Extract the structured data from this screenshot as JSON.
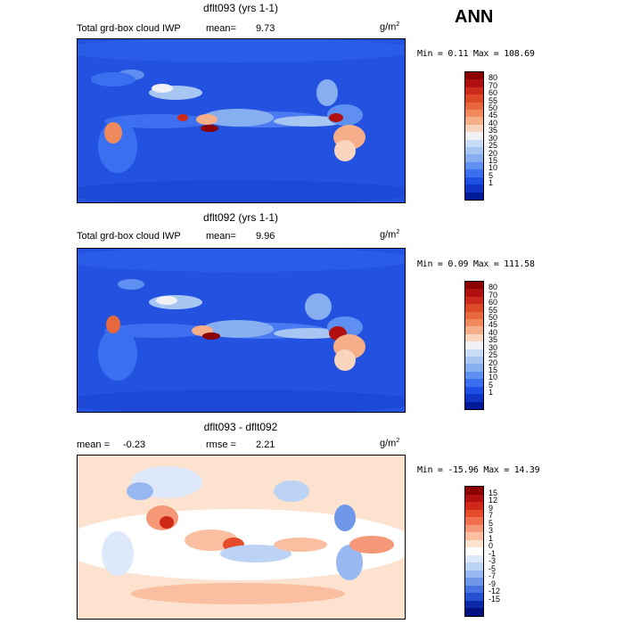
{
  "season": "ANN",
  "panels": [
    {
      "title": "dflt093 (yrs 1-1)",
      "field_label": "Total grd-box cloud IWP",
      "mean_label": "mean=",
      "mean_value": "9.73",
      "units": "g/m",
      "units_exp": "2",
      "range_text": "Min =    0.11 Max = 108.69",
      "colorbar_labels": [
        "80",
        "70",
        "60",
        "55",
        "50",
        "45",
        "40",
        "35",
        "30",
        "25",
        "20",
        "15",
        "10",
        "5",
        "1"
      ],
      "colorbar_colors": [
        "#8b0000",
        "#b01010",
        "#cc2a1a",
        "#dd4a2a",
        "#e8683e",
        "#f08a5c",
        "#f5ae88",
        "#fad5bd",
        "#f0f0f5",
        "#c9dcf5",
        "#a8c6f2",
        "#86aef0",
        "#5f8ff0",
        "#3a6ff0",
        "#1e50e6",
        "#1034c4",
        "#001a99"
      ]
    },
    {
      "title": "dflt092 (yrs 1-1)",
      "field_label": "Total grd-box cloud IWP",
      "mean_label": "mean=",
      "mean_value": "9.96",
      "units": "g/m",
      "units_exp": "2",
      "range_text": "Min =    0.09 Max = 111.58",
      "colorbar_labels": [
        "80",
        "70",
        "60",
        "55",
        "50",
        "45",
        "40",
        "35",
        "30",
        "25",
        "20",
        "15",
        "10",
        "5",
        "1"
      ],
      "colorbar_colors": [
        "#8b0000",
        "#b01010",
        "#cc2a1a",
        "#dd4a2a",
        "#e8683e",
        "#f08a5c",
        "#f5ae88",
        "#fad5bd",
        "#f0f0f5",
        "#c9dcf5",
        "#a8c6f2",
        "#86aef0",
        "#5f8ff0",
        "#3a6ff0",
        "#1e50e6",
        "#1034c4",
        "#001a99"
      ]
    },
    {
      "title": "dflt093 - dflt092",
      "mean_label": "mean =",
      "mean_value": "-0.23",
      "rmse_label": "rmse =",
      "rmse_value": "2.21",
      "units": "g/m",
      "units_exp": "2",
      "range_text": "Min = -15.96 Max =  14.39",
      "colorbar_labels": [
        "15",
        "12",
        "9",
        "7",
        "5",
        "3",
        "1",
        "0",
        "-1",
        "-3",
        "-5",
        "-7",
        "-9",
        "-12",
        "-15"
      ],
      "colorbar_colors": [
        "#8b0000",
        "#b01010",
        "#d02818",
        "#e54a2a",
        "#f07050",
        "#f59878",
        "#f9bfa0",
        "#fde2cf",
        "#ffffff",
        "#dde9fa",
        "#bcd3f5",
        "#97b8f0",
        "#6f97ea",
        "#4874e2",
        "#2550d2",
        "#0a2aa8",
        "#001080"
      ]
    }
  ]
}
